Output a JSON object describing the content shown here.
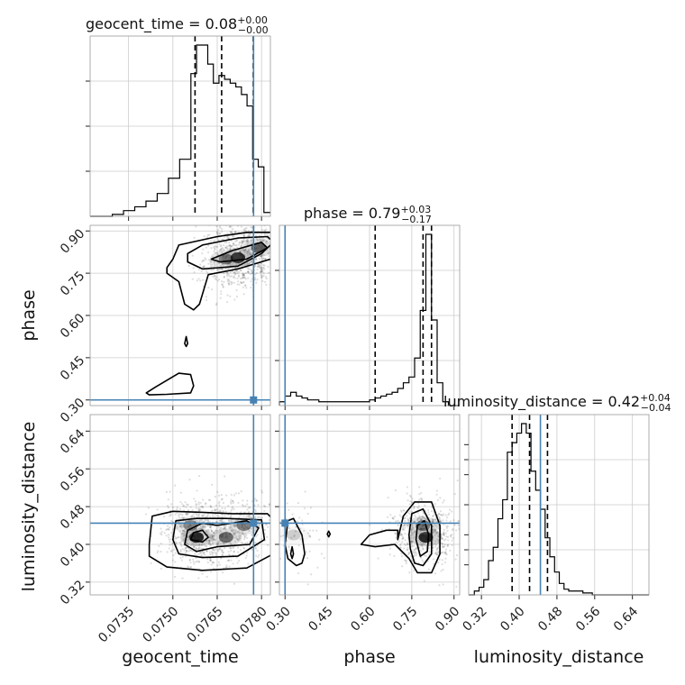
{
  "chart_data": {
    "type": "corner",
    "parameters": [
      "geocent_time",
      "phase",
      "luminosity_distance"
    ],
    "truth_color": "#4682b4",
    "truths": {
      "geocent_time": 0.07773,
      "phase": 0.3,
      "luminosity_distance": 0.445
    },
    "panels": {
      "geocent_time": {
        "title_prefix": "geocent_time = 0.08",
        "title_sup": "+0.00",
        "title_sub": "−0.00",
        "range": [
          0.0722,
          0.0783
        ],
        "ticks": [
          "0.0735",
          "0.0750",
          "0.0765",
          "0.0780"
        ],
        "tick_values": [
          0.0735,
          0.075,
          0.0765,
          0.078
        ],
        "quantiles": [
          0.07575,
          0.07665,
          0.07772
        ],
        "hist_edges": [
          0.0722,
          0.07295,
          0.07333,
          0.07371,
          0.07409,
          0.07447,
          0.07485,
          0.07523,
          0.07561,
          0.0758,
          0.07599,
          0.07618,
          0.07637,
          0.07656,
          0.07675,
          0.07694,
          0.07713,
          0.07732,
          0.07751,
          0.0777,
          0.07789,
          0.07808,
          0.0783
        ],
        "hist_counts": [
          0.0,
          0.01,
          0.03,
          0.05,
          0.08,
          0.12,
          0.2,
          0.3,
          0.75,
          0.9,
          0.9,
          0.8,
          0.7,
          0.74,
          0.72,
          0.7,
          0.68,
          0.64,
          0.58,
          0.3,
          0.26,
          0.02
        ]
      },
      "phase": {
        "title_prefix": "phase = 0.79",
        "title_sup": "+0.03",
        "title_sub": "−0.17",
        "range": [
          0.28,
          0.92
        ],
        "ticks": [
          "0.30",
          "0.45",
          "0.60",
          "0.75",
          "0.90"
        ],
        "tick_values": [
          0.3,
          0.45,
          0.6,
          0.75,
          0.9
        ],
        "quantiles": [
          0.62,
          0.79,
          0.82
        ],
        "hist_edges": [
          0.28,
          0.3,
          0.32,
          0.34,
          0.36,
          0.38,
          0.4,
          0.42,
          0.44,
          0.46,
          0.48,
          0.5,
          0.52,
          0.54,
          0.56,
          0.58,
          0.6,
          0.62,
          0.64,
          0.66,
          0.68,
          0.7,
          0.72,
          0.74,
          0.76,
          0.78,
          0.8,
          0.82,
          0.84,
          0.86,
          0.88,
          0.9,
          0.92
        ],
        "hist_counts": [
          0.02,
          0.05,
          0.07,
          0.05,
          0.04,
          0.03,
          0.03,
          0.02,
          0.02,
          0.02,
          0.02,
          0.02,
          0.02,
          0.02,
          0.02,
          0.02,
          0.03,
          0.04,
          0.05,
          0.06,
          0.07,
          0.09,
          0.12,
          0.15,
          0.25,
          0.5,
          0.9,
          0.45,
          0.12,
          0.02,
          0.0,
          0.0
        ]
      },
      "luminosity_distance": {
        "title_prefix": "luminosity_distance = 0.42",
        "title_sup": "+0.04",
        "title_sub": "−0.04",
        "range": [
          0.293,
          0.675
        ],
        "ticks": [
          "0.32",
          "0.40",
          "0.48",
          "0.56",
          "0.64"
        ],
        "tick_values": [
          0.32,
          0.4,
          0.48,
          0.56,
          0.64
        ],
        "quantiles": [
          0.385,
          0.422,
          0.46
        ],
        "hist_edges": [
          0.293,
          0.305,
          0.315,
          0.325,
          0.335,
          0.345,
          0.355,
          0.365,
          0.375,
          0.385,
          0.395,
          0.405,
          0.415,
          0.425,
          0.435,
          0.445,
          0.455,
          0.465,
          0.475,
          0.485,
          0.495,
          0.505,
          0.515,
          0.525,
          0.535,
          0.545,
          0.555,
          0.565,
          0.575,
          0.675
        ],
        "hist_counts": [
          0.0,
          0.02,
          0.04,
          0.08,
          0.18,
          0.25,
          0.4,
          0.5,
          0.75,
          0.8,
          0.85,
          0.9,
          0.85,
          0.65,
          0.55,
          0.45,
          0.3,
          0.2,
          0.12,
          0.06,
          0.03,
          0.02,
          0.02,
          0.02,
          0.01,
          0.01,
          0.0,
          0.0,
          0.0
        ]
      }
    },
    "pairs": [
      {
        "x": "geocent_time",
        "y": "phase",
        "density_peaks": [
          {
            "x": 0.0772,
            "y": 0.805,
            "weight": 1.0
          },
          {
            "x": 0.0779,
            "y": 0.84,
            "weight": 0.7
          },
          {
            "x": 0.0768,
            "y": 0.8,
            "weight": 0.55
          }
        ],
        "contours": [
          [
            [
              0.0755,
              0.82
            ],
            [
              0.076,
              0.85
            ],
            [
              0.0772,
              0.875
            ],
            [
              0.0782,
              0.88
            ],
            [
              0.0784,
              0.86
            ],
            [
              0.078,
              0.82
            ],
            [
              0.0772,
              0.775
            ],
            [
              0.076,
              0.765
            ],
            [
              0.0755,
              0.79
            ]
          ],
          [
            [
              0.0763,
              0.8
            ],
            [
              0.077,
              0.83
            ],
            [
              0.078,
              0.86
            ],
            [
              0.0782,
              0.84
            ],
            [
              0.0775,
              0.8
            ],
            [
              0.0766,
              0.79
            ]
          ],
          [
            [
              0.0748,
              0.77
            ],
            [
              0.075,
              0.8
            ],
            [
              0.0752,
              0.85
            ],
            [
              0.0765,
              0.88
            ],
            [
              0.0775,
              0.895
            ],
            [
              0.0783,
              0.895
            ],
            [
              0.0786,
              0.87
            ],
            [
              0.0783,
              0.8
            ],
            [
              0.0772,
              0.765
            ],
            [
              0.0762,
              0.745
            ],
            [
              0.0759,
              0.64
            ],
            [
              0.0757,
              0.62
            ],
            [
              0.0754,
              0.64
            ],
            [
              0.0752,
              0.72
            ],
            [
              0.0748,
              0.75
            ]
          ],
          [
            [
              0.0741,
              0.325
            ],
            [
              0.0744,
              0.345
            ],
            [
              0.0752,
              0.395
            ],
            [
              0.0756,
              0.39
            ],
            [
              0.0757,
              0.35
            ],
            [
              0.0756,
              0.325
            ],
            [
              0.0748,
              0.32
            ],
            [
              0.0742,
              0.318
            ]
          ],
          [
            [
              0.0754,
              0.5
            ],
            [
              0.07545,
              0.525
            ],
            [
              0.0755,
              0.5
            ],
            [
              0.07545,
              0.49
            ]
          ]
        ]
      },
      {
        "x": "geocent_time",
        "y": "luminosity_distance",
        "density_peaks": [
          {
            "x": 0.0758,
            "y": 0.415,
            "weight": 1.0
          },
          {
            "x": 0.0768,
            "y": 0.415,
            "weight": 0.65
          },
          {
            "x": 0.0774,
            "y": 0.44,
            "weight": 0.55
          },
          {
            "x": 0.0756,
            "y": 0.44,
            "weight": 0.5
          }
        ],
        "contours": [
          [
            [
              0.0742,
              0.4
            ],
            [
              0.0743,
              0.46
            ],
            [
              0.075,
              0.47
            ],
            [
              0.076,
              0.468
            ],
            [
              0.077,
              0.465
            ],
            [
              0.0782,
              0.465
            ],
            [
              0.0786,
              0.44
            ],
            [
              0.0784,
              0.38
            ],
            [
              0.0775,
              0.35
            ],
            [
              0.076,
              0.345
            ],
            [
              0.0748,
              0.352
            ],
            [
              0.0742,
              0.375
            ]
          ],
          [
            [
              0.075,
              0.41
            ],
            [
              0.0751,
              0.45
            ],
            [
              0.0758,
              0.455
            ],
            [
              0.0768,
              0.455
            ],
            [
              0.078,
              0.452
            ],
            [
              0.0781,
              0.41
            ],
            [
              0.0772,
              0.375
            ],
            [
              0.076,
              0.372
            ],
            [
              0.0752,
              0.38
            ]
          ],
          [
            [
              0.0754,
              0.4
            ],
            [
              0.0755,
              0.43
            ],
            [
              0.076,
              0.445
            ],
            [
              0.0765,
              0.44
            ],
            [
              0.0775,
              0.45
            ],
            [
              0.0779,
              0.435
            ],
            [
              0.0776,
              0.4
            ],
            [
              0.0765,
              0.395
            ],
            [
              0.0758,
              0.385
            ]
          ],
          [
            [
              0.0756,
              0.41
            ],
            [
              0.0757,
              0.425
            ],
            [
              0.076,
              0.43
            ],
            [
              0.0762,
              0.415
            ],
            [
              0.076,
              0.405
            ]
          ]
        ]
      },
      {
        "x": "phase",
        "y": "luminosity_distance",
        "density_peaks": [
          {
            "x": 0.8,
            "y": 0.415,
            "weight": 1.0
          },
          {
            "x": 0.79,
            "y": 0.44,
            "weight": 0.6
          },
          {
            "x": 0.33,
            "y": 0.42,
            "weight": 0.2
          }
        ],
        "contours": [
          [
            [
              0.7,
              0.41
            ],
            [
              0.72,
              0.46
            ],
            [
              0.76,
              0.49
            ],
            [
              0.82,
              0.49
            ],
            [
              0.85,
              0.44
            ],
            [
              0.85,
              0.38
            ],
            [
              0.82,
              0.34
            ],
            [
              0.77,
              0.34
            ],
            [
              0.74,
              0.37
            ],
            [
              0.69,
              0.4
            ],
            [
              0.62,
              0.395
            ],
            [
              0.57,
              0.4
            ],
            [
              0.6,
              0.42
            ],
            [
              0.66,
              0.43
            ],
            [
              0.7,
              0.43
            ]
          ],
          [
            [
              0.74,
              0.42
            ],
            [
              0.75,
              0.465
            ],
            [
              0.79,
              0.475
            ],
            [
              0.82,
              0.44
            ],
            [
              0.82,
              0.38
            ],
            [
              0.79,
              0.355
            ],
            [
              0.76,
              0.36
            ],
            [
              0.745,
              0.39
            ]
          ],
          [
            [
              0.765,
              0.41
            ],
            [
              0.77,
              0.44
            ],
            [
              0.795,
              0.45
            ],
            [
              0.81,
              0.42
            ],
            [
              0.805,
              0.385
            ],
            [
              0.78,
              0.375
            ]
          ],
          [
            [
              0.3,
              0.4
            ],
            [
              0.31,
              0.45
            ],
            [
              0.33,
              0.455
            ],
            [
              0.36,
              0.42
            ],
            [
              0.37,
              0.38
            ],
            [
              0.36,
              0.36
            ],
            [
              0.34,
              0.355
            ],
            [
              0.31,
              0.37
            ]
          ],
          [
            [
              0.32,
              0.38
            ],
            [
              0.325,
              0.395
            ],
            [
              0.33,
              0.38
            ],
            [
              0.325,
              0.37
            ]
          ],
          [
            [
              0.45,
              0.422
            ],
            [
              0.455,
              0.428
            ],
            [
              0.46,
              0.422
            ],
            [
              0.455,
              0.416
            ]
          ]
        ]
      }
    ]
  }
}
